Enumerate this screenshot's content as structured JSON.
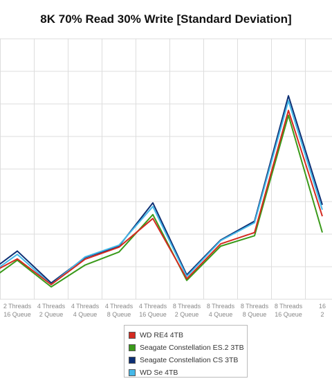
{
  "chart_data": {
    "type": "line",
    "title": "8K 70% Read 30% Write [Standard Deviation]",
    "categories": [
      [
        "Threads",
        "Queue"
      ],
      [
        "2 Threads",
        "16 Queue"
      ],
      [
        "4 Threads",
        "2 Queue"
      ],
      [
        "4 Threads",
        "4 Queue"
      ],
      [
        "4 Threads",
        "8 Queue"
      ],
      [
        "4 Threads",
        "16 Queue"
      ],
      [
        "8 Threads",
        "2 Queue"
      ],
      [
        "8 Threads",
        "4 Queue"
      ],
      [
        "8 Threads",
        "8 Queue"
      ],
      [
        "8 Threads",
        "16 Queue"
      ],
      [
        "16",
        "2"
      ]
    ],
    "ylim": [
      0,
      8
    ],
    "grid": true,
    "legend_position": "bottom",
    "series": [
      {
        "name": "WD RE4 4TB",
        "color": "#d42a20",
        "values": [
          0.68,
          1.24,
          0.45,
          1.23,
          1.6,
          2.48,
          0.63,
          1.7,
          2.05,
          5.8,
          2.55
        ]
      },
      {
        "name": "Seagate Constellation ES.2 3TB",
        "color": "#3a9a1a",
        "values": [
          0.45,
          1.2,
          0.38,
          1.05,
          1.45,
          2.6,
          0.58,
          1.63,
          1.95,
          5.65,
          2.05
        ]
      },
      {
        "name": "Seagate Constellation CS 3TB",
        "color": "#0d2f74",
        "values": [
          0.7,
          1.48,
          0.5,
          1.28,
          1.63,
          2.96,
          0.75,
          1.82,
          2.4,
          6.25,
          2.9
        ]
      },
      {
        "name": "WD Se 4TB",
        "color": "#45b8e8",
        "values": [
          0.63,
          1.38,
          0.45,
          1.3,
          1.66,
          2.85,
          0.7,
          1.8,
          2.35,
          6.1,
          2.75
        ]
      }
    ]
  }
}
